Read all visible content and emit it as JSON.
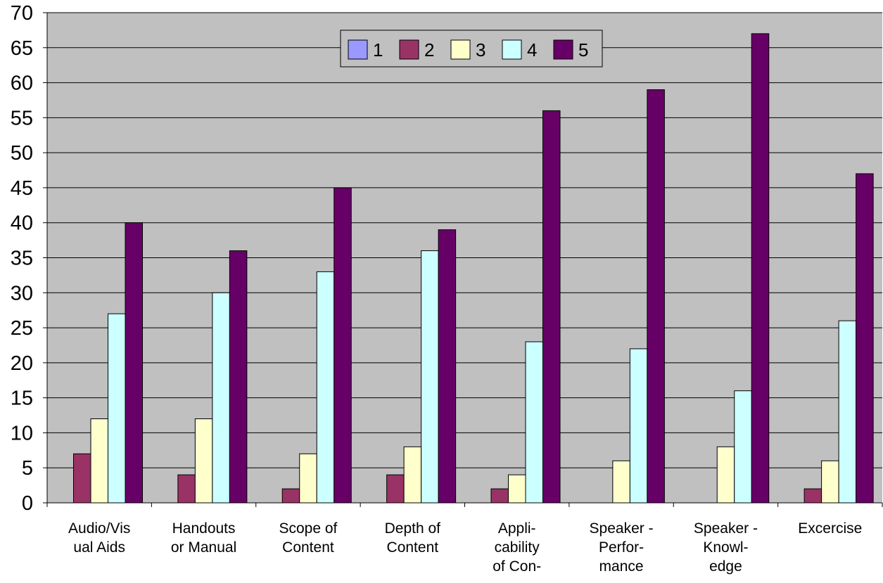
{
  "chart_data": {
    "type": "bar",
    "title": "",
    "xlabel": "",
    "ylabel": "",
    "ylim": [
      0,
      70
    ],
    "yticks": [
      0,
      5,
      10,
      15,
      20,
      25,
      30,
      35,
      40,
      45,
      50,
      55,
      60,
      65,
      70
    ],
    "grid": "horizontal",
    "legend_position": "top-center",
    "categories": [
      [
        "Audio/Vis",
        "ual Aids"
      ],
      [
        "Handouts",
        "or Manual"
      ],
      [
        "Scope of",
        "Content"
      ],
      [
        "Depth of",
        "Content"
      ],
      [
        "Appli-",
        "cability",
        "of Con-"
      ],
      [
        "Speaker -",
        "Perfor-",
        "mance"
      ],
      [
        "Speaker -",
        "Knowl-",
        "edge"
      ],
      [
        "Excercise"
      ]
    ],
    "series": [
      {
        "name": "1",
        "color": "#9999ff",
        "values": [
          0,
          0,
          0,
          0,
          0,
          0,
          0,
          0
        ]
      },
      {
        "name": "2",
        "color": "#993366",
        "values": [
          7,
          4,
          2,
          4,
          2,
          0,
          0,
          2
        ]
      },
      {
        "name": "3",
        "color": "#ffffcc",
        "values": [
          12,
          12,
          7,
          8,
          4,
          6,
          8,
          6
        ]
      },
      {
        "name": "4",
        "color": "#ccffff",
        "values": [
          27,
          30,
          33,
          36,
          23,
          22,
          16,
          26
        ]
      },
      {
        "name": "5",
        "color": "#660066",
        "values": [
          40,
          36,
          45,
          39,
          56,
          59,
          67,
          47
        ]
      }
    ],
    "plot_background": "#c0c0c0"
  }
}
